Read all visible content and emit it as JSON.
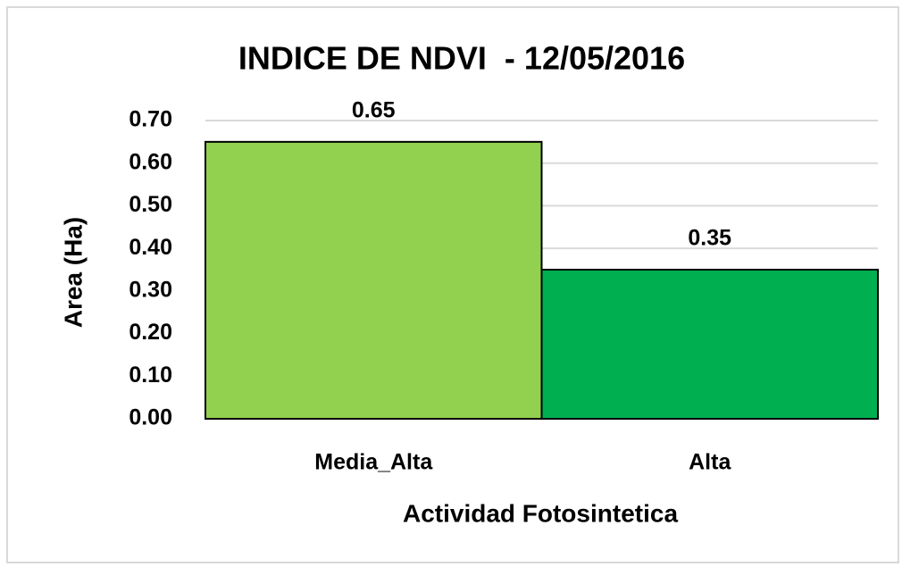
{
  "chart_data": {
    "type": "bar",
    "title": "INDICE DE NDVI  - 12/05/2016",
    "x_label": "Actividad Fotosintetica",
    "y_label": "Area (Ha)",
    "categories": [
      "Media_Alta",
      "Alta"
    ],
    "values": [
      0.65,
      0.35
    ],
    "colors": [
      "#92d050",
      "#00b050"
    ],
    "ylim": [
      0,
      0.7
    ],
    "yticks": [
      {
        "value": 0,
        "label": "0.00"
      },
      {
        "value": 0.1,
        "label": "0.10"
      },
      {
        "value": 0.2,
        "label": "0.20"
      },
      {
        "value": 0.3,
        "label": "0.30"
      },
      {
        "value": 0.4,
        "label": "0.40"
      },
      {
        "value": 0.5,
        "label": "0.50"
      },
      {
        "value": 0.6,
        "label": "0.60"
      },
      {
        "value": 0.7,
        "label": "0.70"
      }
    ],
    "grid": true
  }
}
